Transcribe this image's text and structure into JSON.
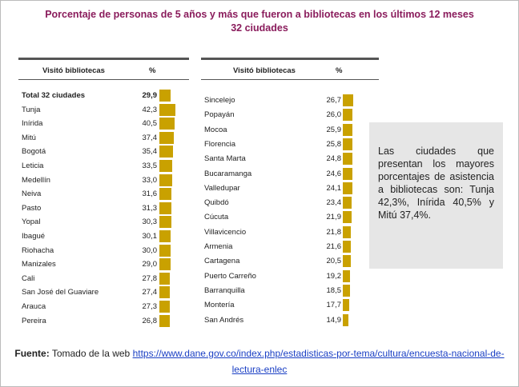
{
  "title": "Porcentaje de personas de 5 años y más que fueron a bibliotecas en los últimos 12 meses",
  "subtitle": "32 ciudades",
  "tables": [
    {
      "header": [
        "Visitó bibliotecas",
        "%"
      ],
      "rows": [
        {
          "name": "Total 32 ciudades",
          "value": 29.9,
          "label": "29,9"
        },
        {
          "name": "Tunja",
          "value": 42.3,
          "label": "42,3"
        },
        {
          "name": "Inírida",
          "value": 40.5,
          "label": "40,5"
        },
        {
          "name": "Mitú",
          "value": 37.4,
          "label": "37,4"
        },
        {
          "name": "Bogotá",
          "value": 35.4,
          "label": "35,4"
        },
        {
          "name": "Leticia",
          "value": 33.5,
          "label": "33,5"
        },
        {
          "name": "Medellín",
          "value": 33.0,
          "label": "33,0"
        },
        {
          "name": "Neiva",
          "value": 31.6,
          "label": "31,6"
        },
        {
          "name": "Pasto",
          "value": 31.3,
          "label": "31,3"
        },
        {
          "name": "Yopal",
          "value": 30.3,
          "label": "30,3"
        },
        {
          "name": "Ibagué",
          "value": 30.1,
          "label": "30,1"
        },
        {
          "name": "Riohacha",
          "value": 30.0,
          "label": "30,0"
        },
        {
          "name": "Manizales",
          "value": 29.0,
          "label": "29,0"
        },
        {
          "name": "Cali",
          "value": 27.8,
          "label": "27,8"
        },
        {
          "name": "San José del Guaviare",
          "value": 27.4,
          "label": "27,4"
        },
        {
          "name": "Arauca",
          "value": 27.3,
          "label": "27,3"
        },
        {
          "name": "Pereira",
          "value": 26.8,
          "label": "26,8"
        }
      ]
    },
    {
      "header": [
        "Visitó bibliotecas",
        "%"
      ],
      "rows": [
        {
          "name": "Sincelejo",
          "value": 26.7,
          "label": "26,7"
        },
        {
          "name": "Popayán",
          "value": 26.0,
          "label": "26,0"
        },
        {
          "name": "Mocoa",
          "value": 25.9,
          "label": "25,9"
        },
        {
          "name": "Florencia",
          "value": 25.8,
          "label": "25,8"
        },
        {
          "name": "Santa Marta",
          "value": 24.8,
          "label": "24,8"
        },
        {
          "name": "Bucaramanga",
          "value": 24.6,
          "label": "24,6"
        },
        {
          "name": "Valledupar",
          "value": 24.1,
          "label": "24,1"
        },
        {
          "name": "Quibdó",
          "value": 23.4,
          "label": "23,4"
        },
        {
          "name": "Cúcuta",
          "value": 21.9,
          "label": "21,9"
        },
        {
          "name": "Villavicencio",
          "value": 21.8,
          "label": "21,8"
        },
        {
          "name": "Armenia",
          "value": 21.6,
          "label": "21,6"
        },
        {
          "name": "Cartagena",
          "value": 20.5,
          "label": "20,5"
        },
        {
          "name": "Puerto Carreño",
          "value": 19.2,
          "label": "19,2"
        },
        {
          "name": "Barranquilla",
          "value": 18.5,
          "label": "18,5"
        },
        {
          "name": "Montería",
          "value": 17.7,
          "label": "17,7"
        },
        {
          "name": "San Andrés",
          "value": 14.9,
          "label": "14,9"
        }
      ]
    }
  ],
  "note": "Las ciudades que presentan los mayores porcentajes de asistencia a bibliotecas son: Tunja 42,3%, Inírida 40,5% y Mitú 37,4%.",
  "source": {
    "label": "Fuente:",
    "text": " Tomado de la web ",
    "link": "https://www.dane.gov.co/index.php/estadisticas-por-tema/cultura/encuesta-nacional-de-lectura-enlec"
  }
}
